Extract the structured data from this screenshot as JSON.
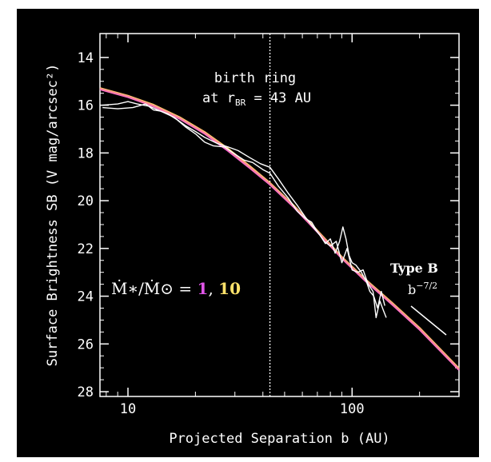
{
  "colors": {
    "background": "#000000",
    "axes": "#ffffff",
    "observed": "#ffffff",
    "model_magenta": "#ff66dd",
    "model_yellow": "#ffcc66",
    "model_pink": "#ff8899",
    "label_magenta": "#e055e8",
    "label_yellow": "#ffe26a"
  },
  "annotations": {
    "birth_ring_line1": "birth ring",
    "birth_ring_line2_prefix": "at r",
    "birth_ring_sub": "BR",
    "birth_ring_line2_suffix": " = 43 AU",
    "mdot_label": "Ṁ∗/Ṁ⊙ = ",
    "mdot_value_1": "1",
    "mdot_sep": ", ",
    "mdot_value_2": "10",
    "type_label": "Type B",
    "slope_base": "b",
    "slope_exp": "−7/2"
  },
  "chart_data": {
    "type": "line",
    "xlabel": "Projected Separation b (AU)",
    "ylabel": "Surface Brightness SB (V mag/arcsec²)",
    "xscale": "log",
    "xlim": [
      7.5,
      300
    ],
    "ylim": [
      28.2,
      13.0
    ],
    "y_inverted": true,
    "xticks": [
      10,
      100
    ],
    "xtick_labels": [
      "10",
      "100"
    ],
    "yticks": [
      14,
      16,
      18,
      20,
      22,
      24,
      26,
      28
    ],
    "ytick_labels": [
      "14",
      "16",
      "18",
      "20",
      "22",
      "24",
      "26",
      "28"
    ],
    "vline": {
      "x": 43,
      "style": "dotted"
    },
    "series": [
      {
        "kind": "model",
        "color": "#ffcc66",
        "x": [
          7.5,
          10,
          13,
          17,
          22,
          28,
          35,
          43,
          55,
          70,
          90,
          115,
          150,
          200,
          300
        ],
        "y": [
          15.28,
          15.6,
          15.98,
          16.5,
          17.12,
          17.82,
          18.55,
          19.25,
          20.2,
          21.25,
          22.35,
          23.3,
          24.25,
          25.32,
          27.02
        ]
      },
      {
        "kind": "model",
        "color": "#ff66dd",
        "x": [
          7.5,
          10,
          13,
          17,
          22,
          28,
          35,
          43,
          55,
          70,
          90,
          115,
          150,
          200,
          300
        ],
        "y": [
          15.34,
          15.66,
          16.05,
          16.57,
          17.2,
          17.92,
          18.64,
          19.33,
          20.28,
          21.32,
          22.42,
          23.38,
          24.33,
          25.4,
          27.1
        ]
      },
      {
        "kind": "model",
        "color": "#ff8899",
        "x": [
          7.5,
          10,
          13,
          17,
          22,
          28,
          35,
          43,
          55,
          70,
          90,
          115,
          150,
          200,
          300
        ],
        "y": [
          15.31,
          15.63,
          16.02,
          16.54,
          17.16,
          17.87,
          18.6,
          19.29,
          20.24,
          21.29,
          22.39,
          23.34,
          24.29,
          25.36,
          27.06
        ]
      },
      {
        "kind": "observed",
        "color": "#ffffff",
        "x": [
          7.7,
          9,
          10.5,
          12,
          13,
          14,
          15,
          16.5,
          18,
          20,
          22,
          24,
          27,
          30,
          33,
          36,
          40,
          43,
          47,
          52,
          57,
          62,
          66,
          70,
          75,
          80,
          85,
          90,
          95,
          100,
          106,
          112,
          118,
          124,
          128,
          133,
          138,
          142
        ],
        "y": [
          16.1,
          16.15,
          16.1,
          15.95,
          16.2,
          16.25,
          16.35,
          16.6,
          16.9,
          17.2,
          17.55,
          17.7,
          17.75,
          18.05,
          18.3,
          18.4,
          18.7,
          18.85,
          19.4,
          19.9,
          20.45,
          20.75,
          20.9,
          21.3,
          21.7,
          21.9,
          21.7,
          22.6,
          22.0,
          22.9,
          23.0,
          22.9,
          23.5,
          23.8,
          24.9,
          24.2,
          24.6,
          24.9
        ]
      },
      {
        "kind": "observed",
        "color": "#ffffff",
        "x": [
          7.7,
          9,
          10,
          11,
          12.5,
          14,
          16,
          18,
          20,
          22,
          25,
          28,
          31,
          35,
          39,
          43,
          47,
          52,
          57,
          62,
          67,
          72,
          76,
          80,
          84,
          88,
          91,
          94,
          97,
          100,
          104,
          110,
          116,
          120,
          125,
          130,
          135,
          140
        ],
        "y": [
          16.0,
          15.95,
          15.85,
          15.95,
          16.05,
          16.25,
          16.5,
          16.85,
          17.1,
          17.35,
          17.6,
          17.75,
          17.9,
          18.2,
          18.45,
          18.6,
          19.1,
          19.7,
          20.2,
          20.7,
          21.1,
          21.45,
          21.8,
          21.6,
          22.2,
          21.7,
          21.1,
          21.6,
          22.3,
          22.6,
          22.7,
          23.0,
          23.4,
          23.8,
          24.0,
          24.5,
          23.8,
          24.4
        ]
      }
    ]
  }
}
